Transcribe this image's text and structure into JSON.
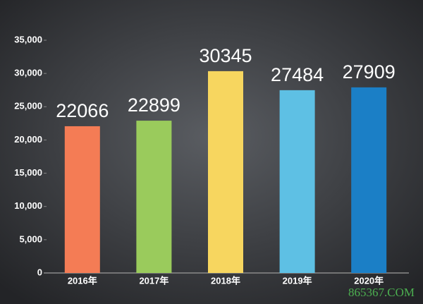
{
  "chart_data": {
    "type": "bar",
    "categories": [
      "2016年",
      "2017年",
      "2018年",
      "2019年",
      "2020年"
    ],
    "values": [
      22066,
      22899,
      30345,
      27484,
      27909
    ],
    "colors": [
      "#f47c55",
      "#9acb5c",
      "#f7d65f",
      "#5ec0e4",
      "#1b7fc6"
    ],
    "ylim": [
      0,
      35000
    ],
    "yticks": [
      0,
      {
        "value": 5000,
        "label": "5,000"
      },
      {
        "value": 10000,
        "label": "10,000"
      },
      {
        "value": 15000,
        "label": "15,000"
      },
      {
        "value": 20000,
        "label": "20,000"
      },
      {
        "value": 25000,
        "label": "25,000"
      },
      {
        "value": 30000,
        "label": "30,000"
      },
      {
        "value": 35000,
        "label": "35,000"
      }
    ],
    "watermark": "865367.COM"
  }
}
